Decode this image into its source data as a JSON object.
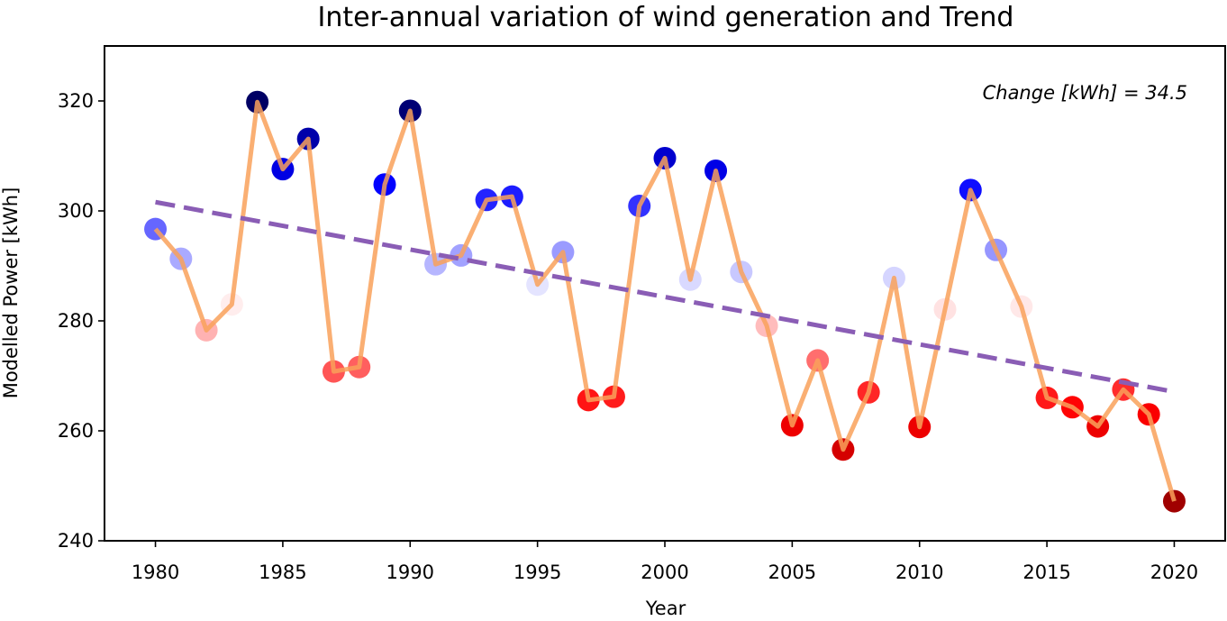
{
  "chart_data": {
    "type": "scatter",
    "title": "Inter-annual variation of wind generation and Trend",
    "xlabel": "Year",
    "ylabel": "Modelled Power [kWh]",
    "xlim": [
      1978,
      2022
    ],
    "ylim": [
      240,
      330
    ],
    "xticks": [
      1980,
      1985,
      1990,
      1995,
      2000,
      2005,
      2010,
      2015,
      2020
    ],
    "yticks": [
      240,
      260,
      280,
      300,
      320
    ],
    "grid": false,
    "annotation": "Change [kWh] = 34.5",
    "colors": {
      "line": "#f9a15a",
      "trend": "#8a5db5",
      "high": "#00006b",
      "low": "#ff0000",
      "neutral": "#ffffff"
    },
    "series": [
      {
        "type": "line",
        "x": [
          1980,
          1981,
          1982,
          1983,
          1984,
          1985,
          1986,
          1987,
          1988,
          1989,
          1990,
          1991,
          1992,
          1993,
          1994,
          1995,
          1996,
          1997,
          1998,
          1999,
          2000,
          2001,
          2002,
          2003,
          2004,
          2005,
          2006,
          2007,
          2008,
          2009,
          2010,
          2011,
          2012,
          2013,
          2014,
          2015,
          2016,
          2017,
          2018,
          2019,
          2020
        ],
        "y": [
          296.7,
          291.3,
          278.3,
          283.0,
          319.8,
          307.6,
          313.1,
          270.8,
          271.6,
          304.8,
          318.2,
          290.3,
          291.9,
          302.0,
          302.6,
          286.6,
          292.5,
          265.6,
          266.2,
          300.9,
          309.6,
          287.5,
          307.3,
          288.9,
          279.1,
          261.0,
          272.8,
          256.6,
          267.0,
          287.8,
          260.7,
          282.1,
          303.8,
          292.9,
          282.6,
          266.0,
          264.3,
          260.8,
          267.5,
          263.0,
          247.2
        ]
      },
      {
        "type": "line",
        "style": "dashed",
        "x": [
          1980,
          2020
        ],
        "y": [
          301.6,
          267.1
        ]
      }
    ]
  }
}
